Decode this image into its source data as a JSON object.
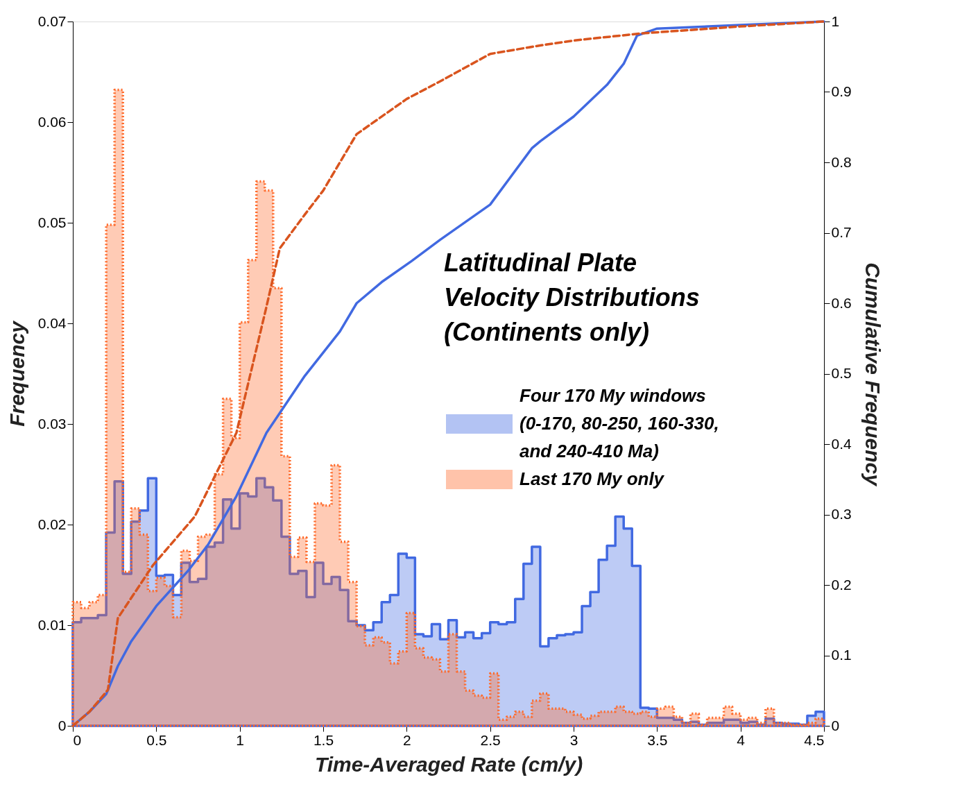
{
  "chart_data": {
    "type": "histogram",
    "title": "Latitudinal Plate Velocity Distributions (Continents only)",
    "xlabel": "Time-Averaged Rate (cm/y)",
    "ylabel": "Frequency",
    "y2label": "Cumulative Frequency",
    "bins": [
      0,
      0.05,
      0.1,
      0.15,
      0.2,
      0.25,
      0.3,
      0.35,
      0.4,
      0.45,
      0.5,
      0.55,
      0.6,
      0.65,
      0.7,
      0.75,
      0.8,
      0.85,
      0.9,
      0.95,
      1.0,
      1.05,
      1.1,
      1.15,
      1.2,
      1.25,
      1.3,
      1.35,
      1.4,
      1.45,
      1.5,
      1.55,
      1.6,
      1.65,
      1.7,
      1.75,
      1.8,
      1.85,
      1.9,
      1.95,
      2.0,
      2.05,
      2.1,
      2.15,
      2.2,
      2.25,
      2.3,
      2.35,
      2.4,
      2.45,
      2.5,
      2.55,
      2.6,
      2.65,
      2.7,
      2.75,
      2.8,
      2.85,
      2.9,
      2.95,
      3.0,
      3.05,
      3.1,
      3.15,
      3.2,
      3.25,
      3.3,
      3.35,
      3.4,
      3.45,
      3.5,
      3.55,
      3.6,
      3.65,
      3.7,
      3.75,
      3.8,
      3.85,
      3.9,
      3.95,
      4.0,
      4.05,
      4.1,
      4.15,
      4.2,
      4.25,
      4.3,
      4.35,
      4.4,
      4.45,
      4.5
    ],
    "series": [
      {
        "name": "Four 170 My windows (0-170, 80-250, 160-330, and 240-410 Ma)",
        "color": "#4169e1",
        "line_style": "solid",
        "values": [
          0.0103,
          0.0107,
          0.0107,
          0.011,
          0.0192,
          0.0243,
          0.0151,
          0.0203,
          0.0214,
          0.0246,
          0.0149,
          0.015,
          0.013,
          0.0162,
          0.0143,
          0.0146,
          0.0178,
          0.0182,
          0.0225,
          0.0196,
          0.0231,
          0.0228,
          0.0246,
          0.0237,
          0.0224,
          0.0188,
          0.0151,
          0.0154,
          0.0128,
          0.0162,
          0.0141,
          0.0148,
          0.0135,
          0.0104,
          0.01,
          0.0095,
          0.0103,
          0.0123,
          0.013,
          0.0171,
          0.0167,
          0.0091,
          0.0089,
          0.0101,
          0.0086,
          0.0105,
          0.0088,
          0.0093,
          0.0087,
          0.0092,
          0.0103,
          0.0101,
          0.0103,
          0.0126,
          0.0161,
          0.0178,
          0.0079,
          0.0087,
          0.009,
          0.0091,
          0.0093,
          0.0119,
          0.0133,
          0.0165,
          0.0179,
          0.0208,
          0.0196,
          0.0159,
          0.0018,
          0.0017,
          0.0008,
          0.0008,
          0.0006,
          0.0003,
          0.0004,
          0.0001,
          0.0003,
          0.0003,
          0.0006,
          0.0006,
          0.0003,
          0.0004,
          0.0001,
          0.0007,
          0.0003,
          0.0002,
          0.0002,
          0.0001,
          0.001,
          0.0014
        ]
      },
      {
        "name": "Last 170 My only",
        "color": "#ff6a2a",
        "line_style": "dotted",
        "values": [
          0.0123,
          0.0117,
          0.0123,
          0.013,
          0.0498,
          0.0632,
          0.0153,
          0.0216,
          0.019,
          0.0134,
          0.0147,
          0.0139,
          0.0108,
          0.0174,
          0.0164,
          0.0188,
          0.019,
          0.025,
          0.0325,
          0.0286,
          0.0401,
          0.0463,
          0.0541,
          0.0532,
          0.0435,
          0.0268,
          0.0168,
          0.0187,
          0.0163,
          0.0221,
          0.0219,
          0.0259,
          0.0183,
          0.0143,
          0.0099,
          0.008,
          0.0088,
          0.0083,
          0.0062,
          0.0074,
          0.0112,
          0.0077,
          0.0068,
          0.0066,
          0.0054,
          0.0091,
          0.0054,
          0.0035,
          0.003,
          0.0028,
          0.0052,
          0.0006,
          0.0009,
          0.0014,
          0.0009,
          0.0025,
          0.0032,
          0.0017,
          0.0017,
          0.0014,
          0.0011,
          0.0007,
          0.001,
          0.0014,
          0.0014,
          0.0019,
          0.0014,
          0.0012,
          0.0014,
          0.0009,
          0.0017,
          0.0019,
          0.0009,
          0.0003,
          0.0012,
          0.0001,
          0.0008,
          0.0008,
          0.0019,
          0.0012,
          0.0006,
          0.0008,
          0.0003,
          0.0017,
          0.0003,
          0.0003,
          0.0001,
          0.0001,
          0.0003,
          0.0007
        ]
      },
      {
        "type": "line",
        "axis": "y2",
        "color": "#4169e1",
        "line_style": "solid",
        "x": [
          0,
          0.1,
          0.2,
          0.27,
          0.35,
          0.5,
          0.69,
          0.81,
          0.98,
          1.16,
          1.39,
          1.5,
          1.6,
          1.7,
          1.85,
          2.03,
          2.2,
          2.5,
          2.75,
          2.8,
          3.0,
          3.2,
          3.3,
          3.38,
          3.5,
          4.0,
          4.5
        ],
        "values": [
          0,
          0.02,
          0.045,
          0.085,
          0.12,
          0.17,
          0.22,
          0.257,
          0.326,
          0.416,
          0.497,
          0.53,
          0.56,
          0.6,
          0.63,
          0.66,
          0.69,
          0.74,
          0.82,
          0.83,
          0.865,
          0.91,
          0.94,
          0.98,
          0.99,
          0.995,
          1.0
        ]
      },
      {
        "type": "line",
        "axis": "y2",
        "color": "#d9541e",
        "line_style": "dashed",
        "x": [
          0,
          0.1,
          0.21,
          0.27,
          0.48,
          0.73,
          0.98,
          1.16,
          1.24,
          1.39,
          1.5,
          1.6,
          1.7,
          2.0,
          2.2,
          2.5,
          2.8,
          3.0,
          3.4,
          4.0,
          4.5
        ],
        "values": [
          0,
          0.02,
          0.051,
          0.153,
          0.228,
          0.297,
          0.416,
          0.595,
          0.678,
          0.726,
          0.76,
          0.8,
          0.84,
          0.89,
          0.915,
          0.954,
          0.966,
          0.973,
          0.983,
          0.993,
          1.0
        ]
      }
    ],
    "xlim": [
      0,
      4.5
    ],
    "xticks": [
      0,
      0.5,
      1,
      1.5,
      2,
      2.5,
      3,
      3.5,
      4,
      4.5
    ],
    "ylim": [
      0,
      0.07
    ],
    "yticks": [
      0,
      0.01,
      0.02,
      0.03,
      0.04,
      0.05,
      0.06,
      0.07
    ],
    "y2lim": [
      0,
      1
    ],
    "y2ticks": [
      0,
      0.1,
      0.2,
      0.3,
      0.4,
      0.5,
      0.6,
      0.7,
      0.8,
      0.9,
      1
    ],
    "legend": "right",
    "grid": false
  }
}
